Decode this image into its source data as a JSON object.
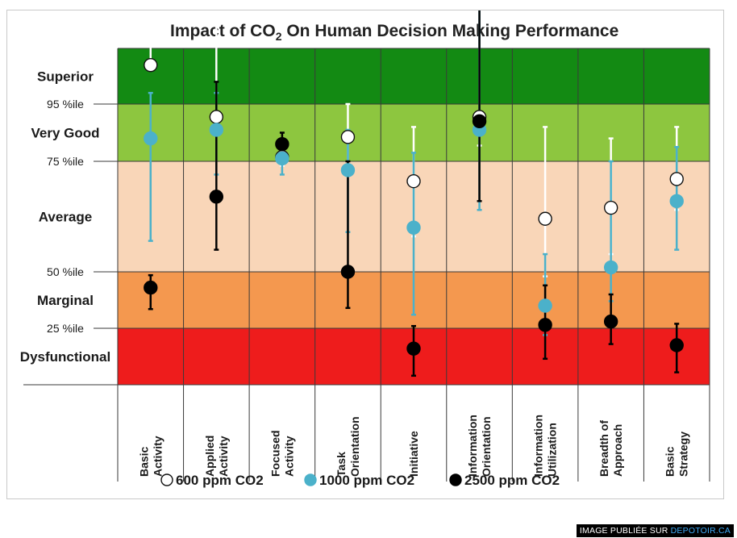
{
  "chart_data": {
    "type": "scatter",
    "title_prefix": "Impact of CO",
    "title_sub": "2",
    "title_suffix": " On Human Decision Making Performance",
    "categories": [
      [
        "Basic",
        "Activity"
      ],
      [
        "Applied",
        "Activity"
      ],
      [
        "Focused",
        "Activity"
      ],
      [
        "Task",
        "Orientation"
      ],
      [
        "Initiative"
      ],
      [
        "Information",
        "Orientation"
      ],
      [
        "Information",
        "Utilization"
      ],
      [
        "Breadth of",
        "Approach"
      ],
      [
        "Basic",
        "Strategy"
      ]
    ],
    "y_unit": "percentile",
    "bands": [
      {
        "label": "Superior",
        "from": 95,
        "to": 100,
        "color": "#138a13"
      },
      {
        "label": "Very Good",
        "from": 75,
        "to": 95,
        "color": "#8dc63f"
      },
      {
        "label": "Average",
        "from": 50,
        "to": 75,
        "color": "#f9d6b8"
      },
      {
        "label": "Marginal",
        "from": 25,
        "to": 50,
        "color": "#f4984f"
      },
      {
        "label": "Dysfunctional",
        "from": 0,
        "to": 25,
        "color": "#ee1c1c"
      }
    ],
    "thresholds": [
      {
        "label": "95 %ile",
        "value": 95
      },
      {
        "label": "75 %ile",
        "value": 75
      },
      {
        "label": "50 %ile",
        "value": 50
      },
      {
        "label": "25 %ile",
        "value": 25
      }
    ],
    "series": [
      {
        "name": "600 ppm CO2",
        "fill": "#ffffff",
        "stroke": "#111111",
        "bar_color": "#ffffff",
        "values": [
          98.5,
          90.5,
          76.5,
          83.5,
          70.5,
          90.5,
          62,
          64.5,
          71
        ],
        "err_low": [
          98.5,
          90.5,
          74,
          74,
          58,
          80.5,
          48,
          54,
          64
        ],
        "err_high": [
          110,
          103,
          79,
          95,
          87,
          107,
          87,
          83,
          87
        ]
      },
      {
        "name": "1000 ppm CO2",
        "fill": "#4bb1ca",
        "stroke": "#4bb1ca",
        "bar_color": "#4bb1ca",
        "values": [
          83,
          86,
          76,
          73,
          60,
          86,
          35,
          51,
          66
        ],
        "err_low": [
          57,
          72,
          72,
          59,
          31,
          64,
          22,
          37,
          55
        ],
        "err_high": [
          96,
          96,
          80,
          86,
          78,
          105,
          54,
          75,
          80
        ]
      },
      {
        "name": "2500 ppm CO2",
        "fill": "#000000",
        "stroke": "#000000",
        "bar_color": "#000000",
        "values": [
          43,
          67,
          81,
          50,
          16,
          89,
          26.5,
          28,
          17.5
        ],
        "err_low": [
          33.5,
          55,
          79,
          34,
          4,
          66,
          11.5,
          18,
          5.5
        ],
        "err_high": [
          48.5,
          97,
          85,
          75,
          26,
          106,
          44,
          40,
          27
        ]
      }
    ],
    "legend": [
      {
        "label": "600 ppm CO2"
      },
      {
        "label": "1000 ppm CO2"
      },
      {
        "label": "2500 ppm CO2"
      }
    ],
    "grid": false
  },
  "watermark": {
    "prefix": "IMAGE PUBLIÉE SUR ",
    "site": "DEPOTOIR.CA"
  }
}
